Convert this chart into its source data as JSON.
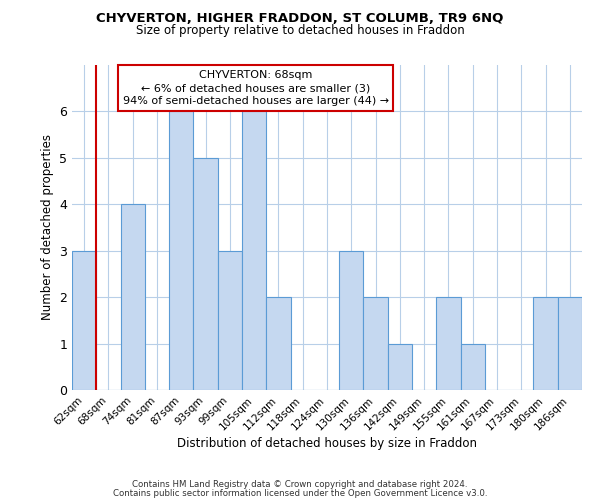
{
  "title": "CHYVERTON, HIGHER FRADDON, ST COLUMB, TR9 6NQ",
  "subtitle": "Size of property relative to detached houses in Fraddon",
  "xlabel": "Distribution of detached houses by size in Fraddon",
  "ylabel": "Number of detached properties",
  "footer_line1": "Contains HM Land Registry data © Crown copyright and database right 2024.",
  "footer_line2": "Contains public sector information licensed under the Open Government Licence v3.0.",
  "categories": [
    "62sqm",
    "68sqm",
    "74sqm",
    "81sqm",
    "87sqm",
    "93sqm",
    "99sqm",
    "105sqm",
    "112sqm",
    "118sqm",
    "124sqm",
    "130sqm",
    "136sqm",
    "142sqm",
    "149sqm",
    "155sqm",
    "161sqm",
    "167sqm",
    "173sqm",
    "180sqm",
    "186sqm"
  ],
  "values": [
    3,
    0,
    4,
    0,
    6,
    5,
    3,
    6,
    2,
    0,
    0,
    3,
    2,
    1,
    0,
    2,
    1,
    0,
    0,
    2,
    2
  ],
  "bar_color": "#c5d8f0",
  "bar_edge_color": "#5b9bd5",
  "highlight_bar_index": 1,
  "annotation_box_text": "CHYVERTON: 68sqm\n← 6% of detached houses are smaller (3)\n94% of semi-detached houses are larger (44) →",
  "ylim": [
    0,
    7
  ],
  "yticks": [
    0,
    1,
    2,
    3,
    4,
    5,
    6
  ],
  "red_line_x": 1.0,
  "red_line_color": "#cc0000",
  "background_color": "#ffffff",
  "grid_color": "#b8cfe8"
}
